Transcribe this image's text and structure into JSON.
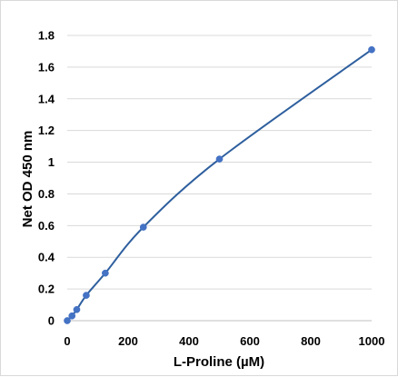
{
  "chart_data": {
    "type": "scatter",
    "title": "",
    "xlabel": "L-Proline (µM)",
    "ylabel": "Net OD 450 nm",
    "xlim": [
      0,
      1000
    ],
    "ylim": [
      0,
      1.8
    ],
    "x_ticks": [
      0,
      200,
      400,
      600,
      800,
      1000
    ],
    "y_ticks": [
      0,
      0.2,
      0.4,
      0.6,
      0.8,
      1,
      1.2,
      1.4,
      1.6,
      1.8
    ],
    "x_tick_labels": [
      "0",
      "200",
      "400",
      "600",
      "800",
      "1000"
    ],
    "y_tick_labels": [
      "0",
      "0.2",
      "0.4",
      "0.6",
      "0.8",
      "1",
      "1.2",
      "1.4",
      "1.6",
      "1.8"
    ],
    "grid": "horizontal",
    "legend": "none",
    "series": [
      {
        "x": [
          0,
          15.6,
          31.25,
          62.5,
          125,
          250,
          500,
          1000
        ],
        "y": [
          0,
          0.03,
          0.07,
          0.16,
          0.3,
          0.59,
          1.02,
          1.71
        ],
        "marker_color": "#4472C4",
        "line_color": "#2E5F9E",
        "line_style": "smooth"
      }
    ]
  }
}
